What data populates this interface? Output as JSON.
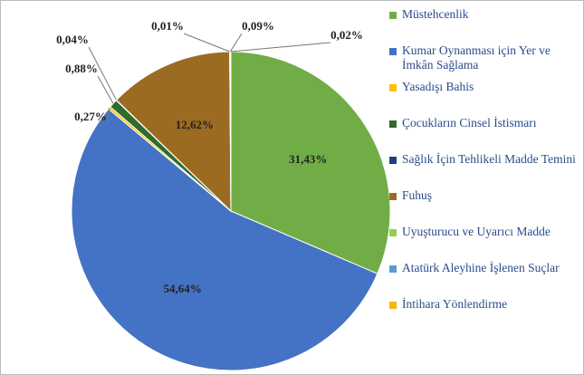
{
  "chart_data": {
    "type": "pie",
    "categories": [
      "Müstehcenlik",
      "Kumar Oynanması için Yer ve İmkân Sağlama",
      "Yasadışı Bahis",
      "Çocukların Cinsel İstismarı",
      "Sağlık İçin Tehlikeli Madde Temini",
      "Fuhuş",
      "Uyuşturucu ve Uyarıcı Madde",
      "Atatürk Aleyhine İşlenen Suçlar",
      "İntihara Yönlendirme"
    ],
    "values": [
      31.43,
      54.64,
      0.27,
      0.88,
      0.04,
      12.62,
      0.01,
      0.09,
      0.02
    ],
    "value_labels": [
      "31,43%",
      "54,64%",
      "0,27%",
      "0,88%",
      "0,04%",
      "12,62%",
      "0,01%",
      "0,09%",
      "0,02%"
    ],
    "colors": [
      "#70ad47",
      "#4472c4",
      "#ffc000",
      "#2f6b2f",
      "#203f7a",
      "#9c6b22",
      "#8fd14f",
      "#5b9bd5",
      "#f5b800"
    ],
    "legend": "right"
  }
}
